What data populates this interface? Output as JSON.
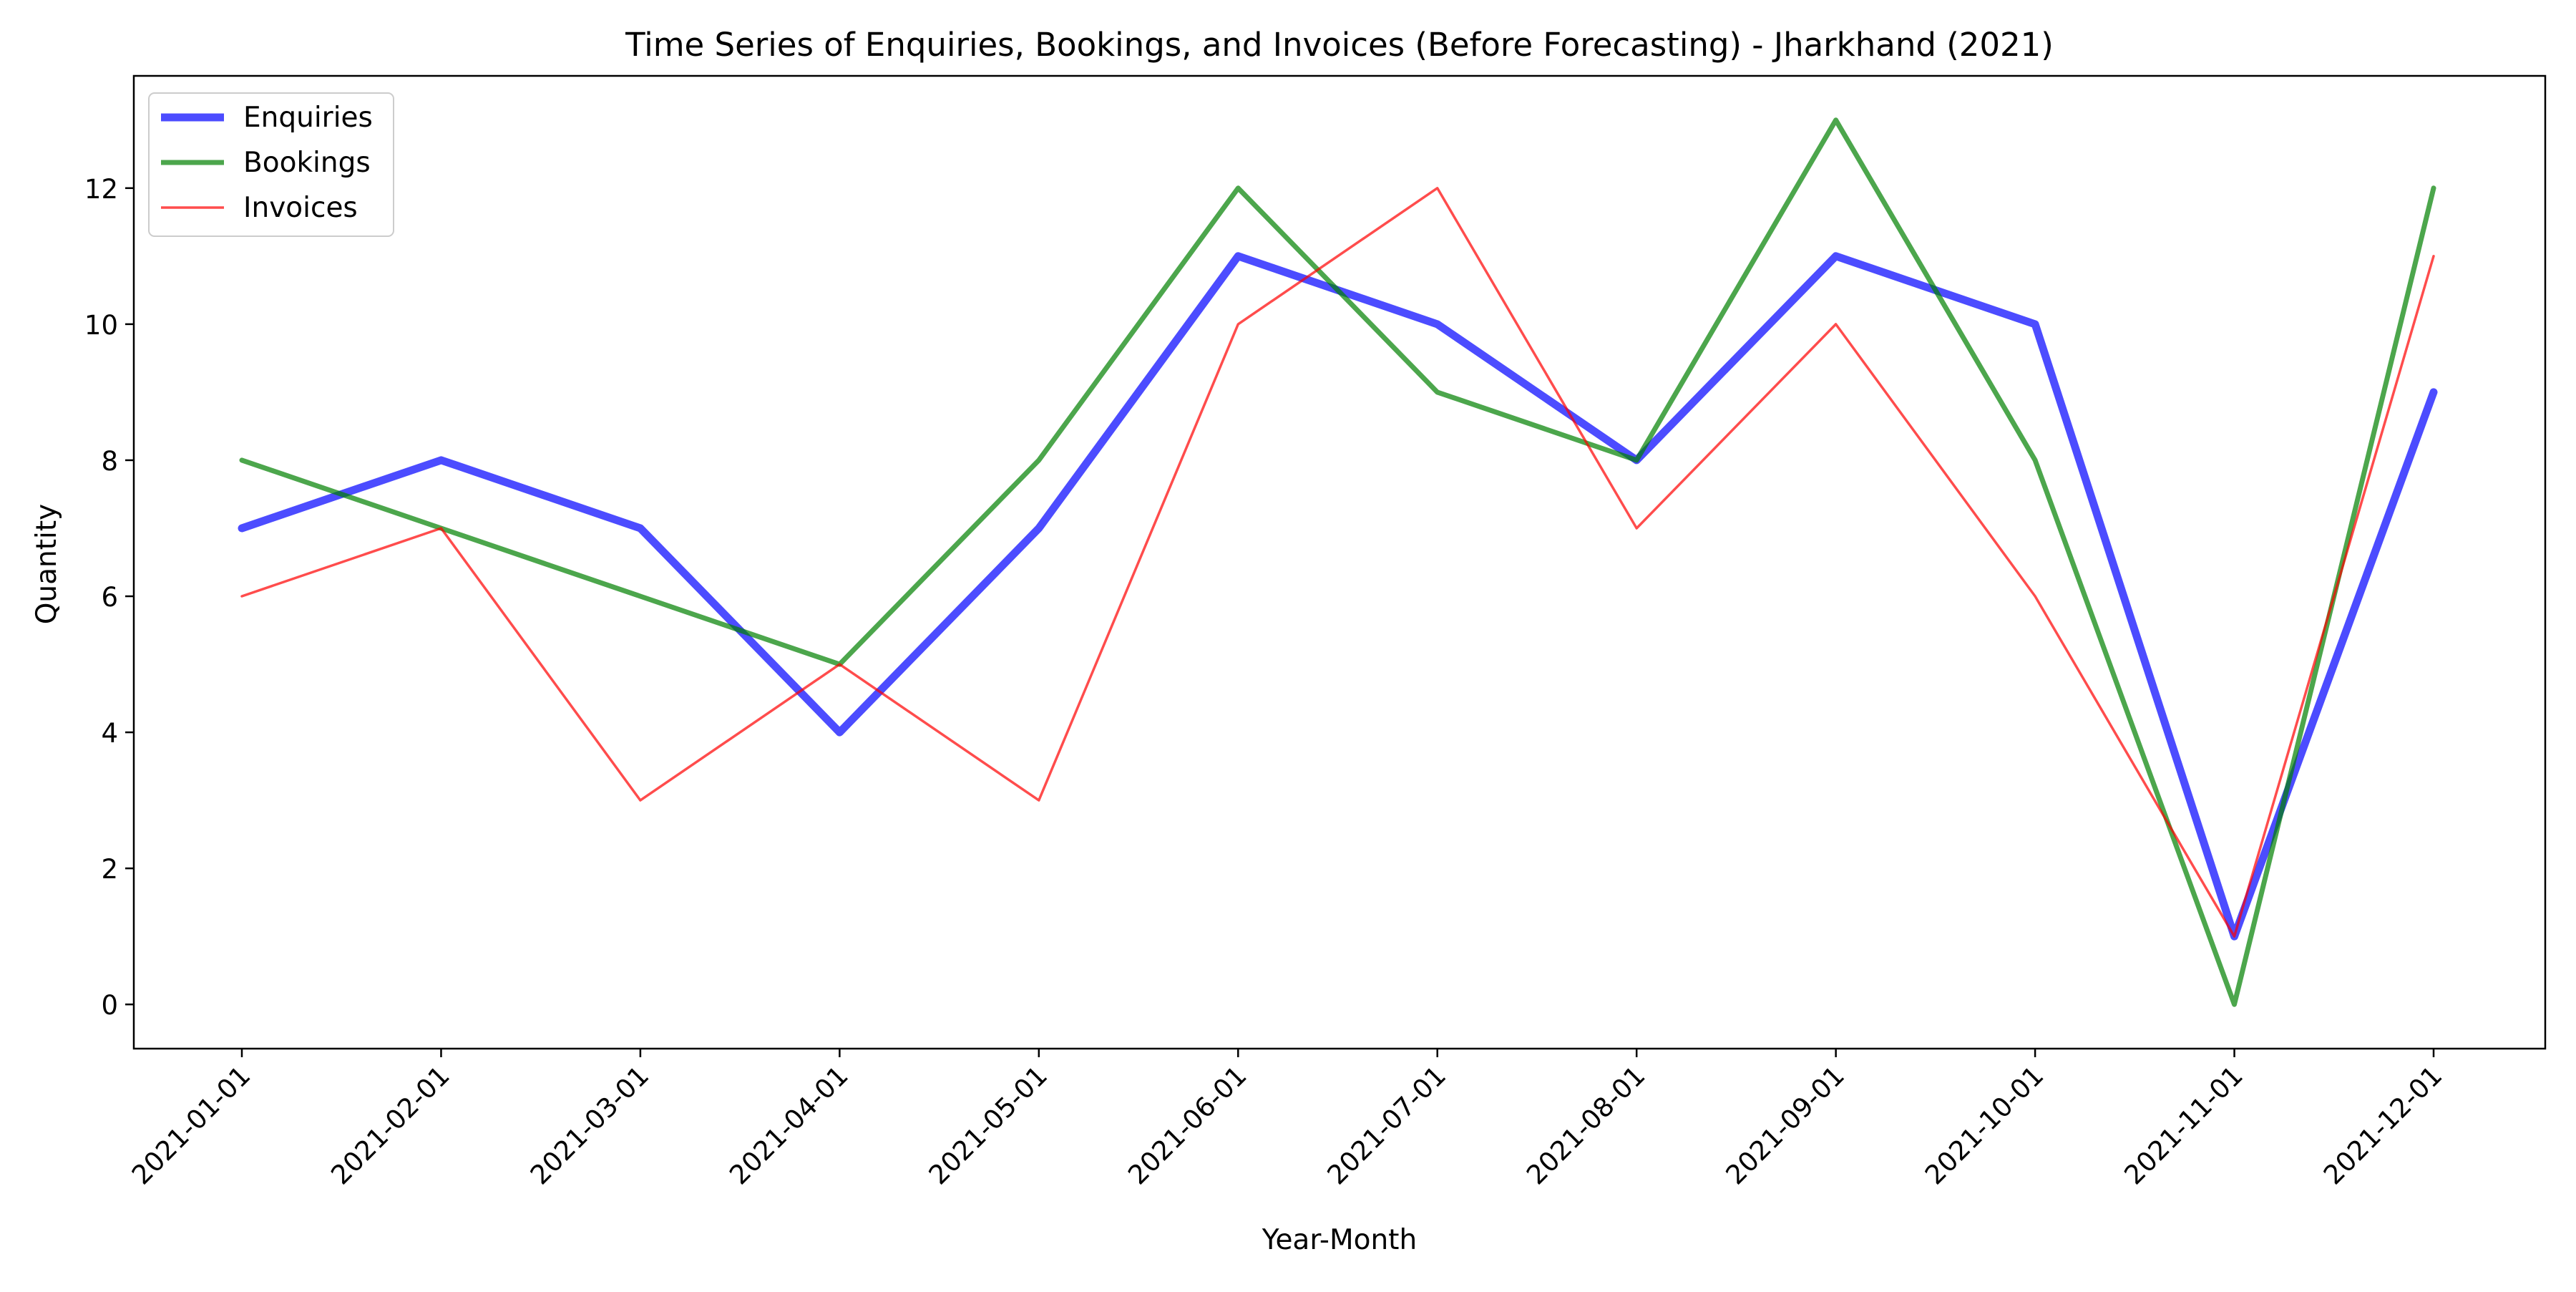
{
  "colors": {
    "enquiries": "#0000ff",
    "bookings": "#008000",
    "invoices": "#ff0000",
    "axes": "#000000",
    "background": "#ffffff"
  },
  "chart_data": {
    "type": "line",
    "title": "Time Series of Enquiries, Bookings, and Invoices (Before Forecasting) - Jharkhand (2021)",
    "xlabel": "Year-Month",
    "ylabel": "Quantity",
    "x": [
      "2021-01-01",
      "2021-02-01",
      "2021-03-01",
      "2021-04-01",
      "2021-05-01",
      "2021-06-01",
      "2021-07-01",
      "2021-08-01",
      "2021-09-01",
      "2021-10-01",
      "2021-11-01",
      "2021-12-01"
    ],
    "ylim": [
      -0.65,
      13.65
    ],
    "yticks": [
      0,
      2,
      4,
      6,
      8,
      10,
      12
    ],
    "grid": false,
    "legend_position": "top-left",
    "series": [
      {
        "name": "Enquiries",
        "color_key": "enquiries",
        "line_weight": "thick",
        "values": [
          7,
          8,
          7,
          4,
          7,
          11,
          10,
          8,
          11,
          10,
          1,
          9
        ]
      },
      {
        "name": "Bookings",
        "color_key": "bookings",
        "line_weight": "medium",
        "values": [
          8,
          7,
          6,
          5,
          8,
          12,
          9,
          8,
          13,
          8,
          0,
          12
        ]
      },
      {
        "name": "Invoices",
        "color_key": "invoices",
        "line_weight": "thin",
        "values": [
          6,
          7,
          3,
          5,
          3,
          10,
          12,
          7,
          10,
          6,
          1,
          11
        ]
      }
    ]
  }
}
